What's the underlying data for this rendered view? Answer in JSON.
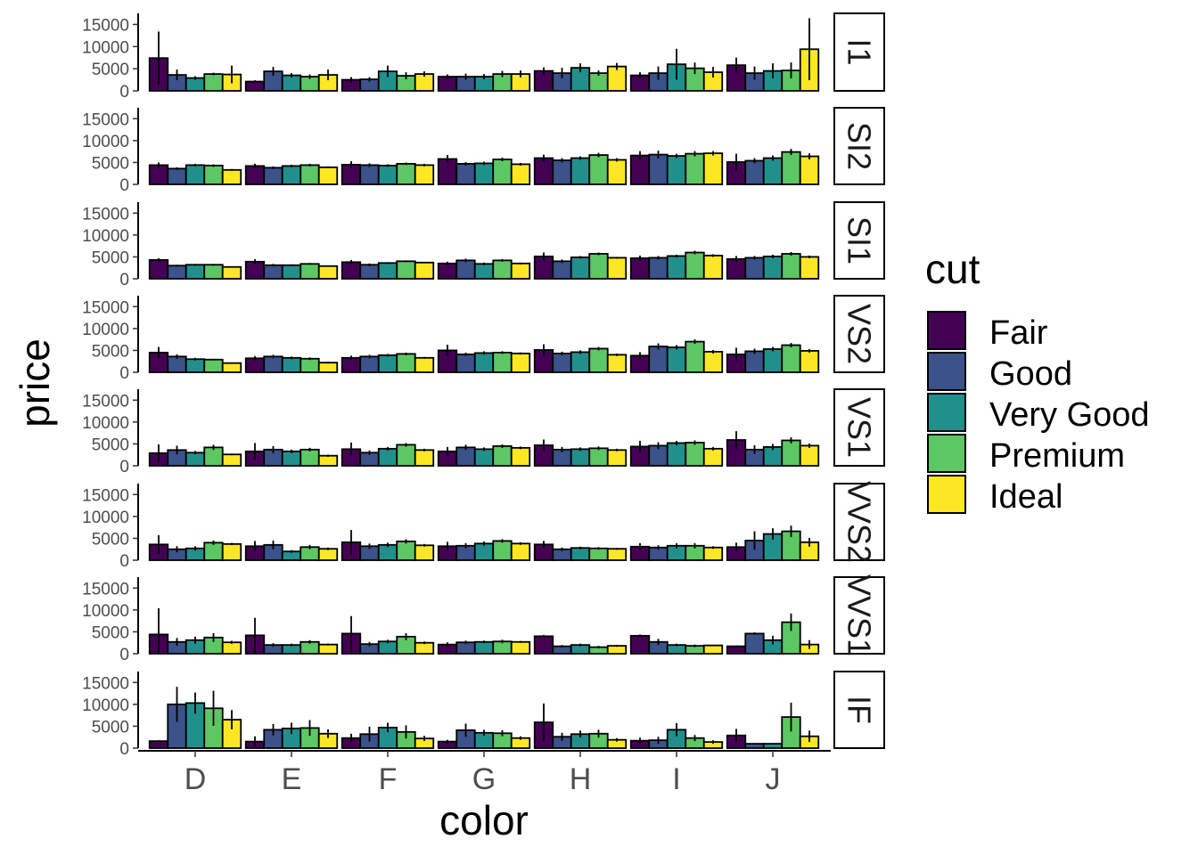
{
  "chart_data": {
    "type": "bar",
    "xlabel": "color",
    "ylabel": "price",
    "yticks": [
      "0",
      "5000",
      "10000",
      "15000"
    ],
    "ylim": [
      0,
      17500
    ],
    "categories": [
      "D",
      "E",
      "F",
      "G",
      "H",
      "I",
      "J"
    ],
    "legend": {
      "title": "cut",
      "position": "right",
      "items": [
        {
          "label": "Fair",
          "color": "#440154"
        },
        {
          "label": "Good",
          "color": "#3B528B"
        },
        {
          "label": "Very Good",
          "color": "#21908C"
        },
        {
          "label": "Premium",
          "color": "#5DC863"
        },
        {
          "label": "Ideal",
          "color": "#FDE725"
        }
      ]
    },
    "facets": [
      {
        "label": "I1",
        "values": [
          [
            7400,
            3600,
            2900,
            3800,
            3700
          ],
          [
            2100,
            4400,
            3500,
            3200,
            3600
          ],
          [
            2500,
            2600,
            4400,
            3400,
            3800
          ],
          [
            3200,
            3200,
            3200,
            3800,
            3800
          ],
          [
            4500,
            4000,
            5200,
            4000,
            5500
          ],
          [
            3500,
            4000,
            6000,
            5100,
            4200
          ],
          [
            5800,
            4000,
            4500,
            4600,
            9400
          ]
        ],
        "errors": [
          [
            6000,
            1200,
            400,
            300,
            2000
          ],
          [
            300,
            1000,
            500,
            500,
            1200
          ],
          [
            600,
            500,
            1300,
            800,
            600
          ],
          [
            500,
            700,
            600,
            700,
            800
          ],
          [
            800,
            1200,
            1000,
            600,
            800
          ],
          [
            700,
            1500,
            3500,
            1300,
            1200
          ],
          [
            1700,
            1500,
            1700,
            1800,
            7000
          ]
        ]
      },
      {
        "label": "SI2",
        "values": [
          [
            4400,
            3600,
            4400,
            4300,
            3300
          ],
          [
            4200,
            3800,
            4200,
            4400,
            3900
          ],
          [
            4500,
            4400,
            4300,
            4700,
            4400
          ],
          [
            5800,
            4700,
            4800,
            5700,
            4600
          ],
          [
            6000,
            5500,
            6000,
            6700,
            5600
          ],
          [
            6600,
            6800,
            6500,
            7000,
            7100
          ],
          [
            5100,
            5400,
            6000,
            7400,
            6400
          ]
        ],
        "errors": [
          [
            600,
            300,
            300,
            300,
            200
          ],
          [
            500,
            300,
            300,
            300,
            200
          ],
          [
            800,
            400,
            300,
            300,
            300
          ],
          [
            900,
            400,
            400,
            400,
            300
          ],
          [
            800,
            500,
            400,
            500,
            400
          ],
          [
            1000,
            900,
            500,
            600,
            500
          ],
          [
            1900,
            600,
            600,
            700,
            700
          ]
        ]
      },
      {
        "label": "SI1",
        "values": [
          [
            4300,
            3000,
            3200,
            3200,
            2700
          ],
          [
            3900,
            3100,
            3100,
            3400,
            2900
          ],
          [
            3800,
            3200,
            3600,
            4000,
            3700
          ],
          [
            3500,
            4200,
            3400,
            4200,
            3500
          ],
          [
            5100,
            4000,
            4900,
            5700,
            4800
          ],
          [
            4700,
            4800,
            5200,
            6000,
            5300
          ],
          [
            4500,
            4800,
            5100,
            5700,
            5000
          ]
        ],
        "errors": [
          [
            400,
            200,
            200,
            200,
            150
          ],
          [
            600,
            300,
            200,
            200,
            150
          ],
          [
            500,
            300,
            200,
            200,
            150
          ],
          [
            400,
            400,
            300,
            300,
            200
          ],
          [
            900,
            400,
            300,
            300,
            200
          ],
          [
            600,
            400,
            300,
            400,
            300
          ],
          [
            700,
            400,
            400,
            400,
            300
          ]
        ]
      },
      {
        "label": "VS2",
        "values": [
          [
            4500,
            3600,
            3000,
            2900,
            2100
          ],
          [
            3200,
            3600,
            3300,
            3100,
            2200
          ],
          [
            3300,
            3600,
            3900,
            4200,
            3300
          ],
          [
            5000,
            4100,
            4400,
            4500,
            4300
          ],
          [
            5100,
            4300,
            4600,
            5400,
            4000
          ],
          [
            3800,
            5900,
            5700,
            7000,
            4700
          ],
          [
            4100,
            4800,
            5300,
            6200,
            4900
          ]
        ],
        "errors": [
          [
            1300,
            500,
            300,
            200,
            150
          ],
          [
            500,
            400,
            300,
            300,
            200
          ],
          [
            500,
            400,
            300,
            300,
            200
          ],
          [
            1300,
            400,
            400,
            300,
            250
          ],
          [
            1300,
            400,
            400,
            400,
            300
          ],
          [
            800,
            700,
            500,
            500,
            400
          ],
          [
            1500,
            600,
            500,
            500,
            400
          ]
        ]
      },
      {
        "label": "VS1",
        "values": [
          [
            2900,
            3600,
            3000,
            4200,
            2600
          ],
          [
            3300,
            3700,
            3300,
            3700,
            2300
          ],
          [
            3800,
            3000,
            3900,
            4800,
            3600
          ],
          [
            3300,
            4200,
            3800,
            4500,
            4100
          ],
          [
            4700,
            3700,
            3800,
            4000,
            3600
          ],
          [
            4400,
            4600,
            5200,
            5300,
            3900
          ],
          [
            5900,
            3700,
            4300,
            5800,
            4600
          ]
        ],
        "errors": [
          [
            2000,
            1000,
            400,
            600,
            200
          ],
          [
            1900,
            800,
            400,
            400,
            250
          ],
          [
            1500,
            500,
            400,
            400,
            300
          ],
          [
            1000,
            600,
            400,
            400,
            300
          ],
          [
            1300,
            600,
            400,
            400,
            300
          ],
          [
            1300,
            800,
            500,
            500,
            400
          ],
          [
            2000,
            1000,
            700,
            700,
            500
          ]
        ]
      },
      {
        "label": "VVS2",
        "values": [
          [
            3600,
            2500,
            2700,
            4000,
            3700
          ],
          [
            3200,
            3500,
            2000,
            3000,
            2600
          ],
          [
            4100,
            3200,
            3500,
            4300,
            3400
          ],
          [
            3200,
            3300,
            3800,
            4400,
            3800
          ],
          [
            3600,
            2500,
            2800,
            2700,
            2600
          ],
          [
            3100,
            2900,
            3300,
            3300,
            2900
          ],
          [
            3000,
            4500,
            6000,
            6600,
            4100
          ]
        ],
        "errors": [
          [
            2100,
            700,
            500,
            500,
            250
          ],
          [
            1200,
            1000,
            300,
            500,
            300
          ],
          [
            2800,
            600,
            500,
            500,
            300
          ],
          [
            1000,
            600,
            500,
            400,
            300
          ],
          [
            800,
            400,
            300,
            300,
            200
          ],
          [
            800,
            500,
            600,
            600,
            300
          ],
          [
            1000,
            2100,
            1300,
            1300,
            1000
          ]
        ]
      },
      {
        "label": "VVS1",
        "values": [
          [
            4400,
            2700,
            3100,
            3700,
            2600
          ],
          [
            4200,
            2000,
            2000,
            2700,
            2100
          ],
          [
            4600,
            2200,
            2800,
            3900,
            2500
          ],
          [
            2100,
            2600,
            2700,
            2800,
            2700
          ],
          [
            4000,
            1700,
            2000,
            1500,
            1800
          ],
          [
            4100,
            2700,
            2000,
            1800,
            1900
          ],
          [
            1700,
            4600,
            3100,
            7200,
            2100
          ]
        ],
        "errors": [
          [
            6000,
            900,
            800,
            1000,
            350
          ],
          [
            4000,
            400,
            300,
            400,
            250
          ],
          [
            4000,
            500,
            400,
            800,
            300
          ],
          [
            500,
            400,
            300,
            400,
            200
          ],
          [
            300,
            300,
            300,
            300,
            200
          ],
          [
            300,
            700,
            300,
            300,
            150
          ],
          [
            200,
            300,
            1000,
            2000,
            1000
          ]
        ]
      },
      {
        "label": "IF",
        "values": [
          [
            1600,
            10000,
            10300,
            9100,
            6500
          ],
          [
            1500,
            4200,
            4500,
            4600,
            3300
          ],
          [
            2300,
            3200,
            4700,
            3700,
            2200
          ],
          [
            1500,
            4100,
            3500,
            3400,
            2300
          ],
          [
            5900,
            2600,
            3200,
            3300,
            1900
          ],
          [
            1700,
            1800,
            4200,
            2300,
            1400
          ],
          [
            2900,
            1000,
            1000,
            7100,
            2700
          ]
        ],
        "errors": [
          [
            200,
            4000,
            2400,
            4000,
            2200
          ],
          [
            1200,
            1300,
            1300,
            1800,
            1000
          ],
          [
            1000,
            1700,
            1100,
            1500,
            600
          ],
          [
            400,
            1500,
            700,
            700,
            400
          ],
          [
            4300,
            900,
            800,
            900,
            400
          ],
          [
            700,
            800,
            1500,
            700,
            400
          ],
          [
            1500,
            100,
            100,
            3300,
            1300
          ]
        ]
      }
    ]
  }
}
